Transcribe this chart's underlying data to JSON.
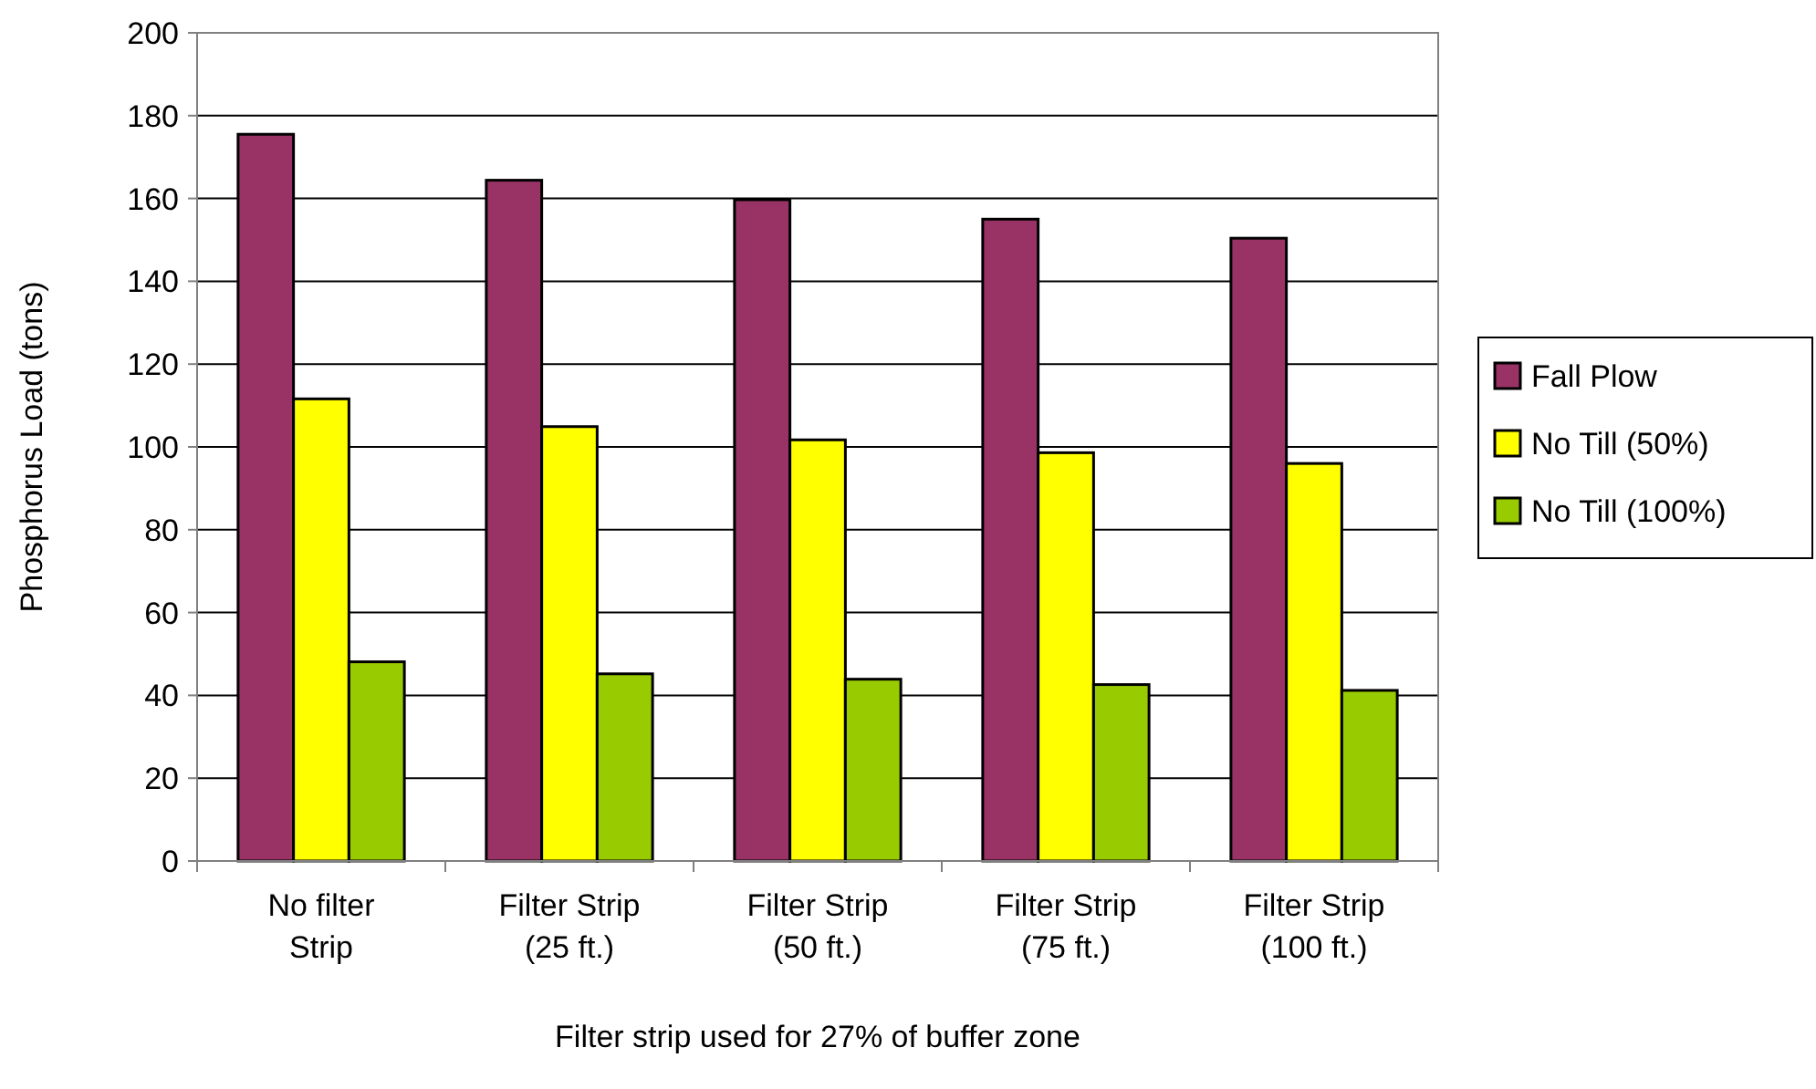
{
  "chart_data": {
    "type": "bar",
    "xlabel": "Filter strip used for 27% of buffer zone",
    "ylabel": "Phosphorus Load (tons)",
    "categories": [
      "No filter Strip",
      "Filter Strip (25 ft.)",
      "Filter Strip (50 ft.)",
      "Filter Strip (75 ft.)",
      "Filter Strip (100 ft.)"
    ],
    "series": [
      {
        "name": "Fall Plow",
        "color": "#993366",
        "values": [
          175.5,
          164.4,
          159.7,
          155,
          150.4
        ]
      },
      {
        "name": "No Till (50%)",
        "color": "#ffff00",
        "values": [
          111.6,
          104.9,
          101.7,
          98.6,
          96
        ]
      },
      {
        "name": "No Till (100%)",
        "color": "#99cc00",
        "values": [
          48.1,
          45.2,
          43.9,
          42.6,
          41.2
        ]
      }
    ],
    "ylim": [
      0,
      200
    ],
    "yticks": [
      0,
      20,
      40,
      60,
      80,
      100,
      120,
      140,
      160,
      180,
      200
    ],
    "grid": "y",
    "legend": "right"
  }
}
